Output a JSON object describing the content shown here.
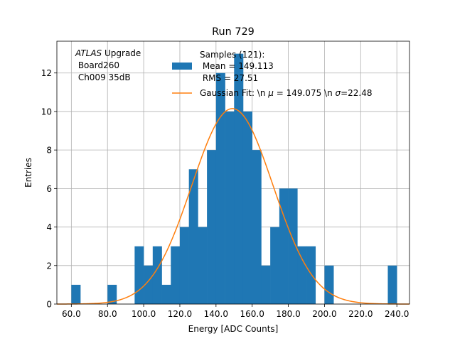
{
  "chart_data": {
    "type": "bar",
    "title": "Run 729",
    "xlabel": "Energy [ADC Counts]",
    "ylabel": "Entries",
    "xlim": [
      52,
      247
    ],
    "ylim": [
      0,
      13.65
    ],
    "grid": true,
    "xticks": [
      60,
      80,
      100,
      120,
      140,
      160,
      180,
      200,
      220,
      240
    ],
    "xtick_labels": [
      "60.0",
      "80.0",
      "100.0",
      "120.0",
      "140.0",
      "160.0",
      "180.0",
      "200.0",
      "220.0",
      "240.0"
    ],
    "yticks": [
      0,
      2,
      4,
      6,
      8,
      10,
      12
    ],
    "ytick_labels": [
      "0",
      "2",
      "4",
      "6",
      "8",
      "10",
      "12"
    ],
    "annotation": {
      "line1_italic": "ATLAS",
      "line1_rest": " Upgrade",
      "line2": " Board260",
      "line3": " Ch009 35dB"
    },
    "histogram": {
      "name": "Samples (121):",
      "mean_label": " Mean = 149.113",
      "rms_label": " RMS = 27.51",
      "color": "#1f77b4",
      "bin_edges": [
        60,
        65,
        70,
        75,
        80,
        85,
        90,
        95,
        100,
        105,
        110,
        115,
        120,
        125,
        130,
        135,
        140,
        145,
        150,
        155,
        160,
        165,
        170,
        175,
        180,
        185,
        190,
        195,
        200,
        205,
        210,
        215,
        220,
        225,
        230,
        235,
        240
      ],
      "counts": [
        1,
        0,
        0,
        0,
        1,
        0,
        0,
        3,
        2,
        3,
        1,
        3,
        4,
        7,
        4,
        8,
        12,
        10,
        13,
        10,
        8,
        2,
        4,
        6,
        6,
        3,
        3,
        0,
        2,
        0,
        0,
        0,
        0,
        0,
        0,
        2
      ]
    },
    "fit": {
      "label": "Gaussian Fit: \\n $\\mu$ = 149.075 \\n $\\sigma$=22.48",
      "label_prefix": "Gaussian Fit: \\n ",
      "mu_symbol": "μ",
      "label_mid": " = 149.075 \\n ",
      "sigma_symbol": "σ",
      "label_suffix": "=22.48",
      "mu": 149.075,
      "sigma": 22.48,
      "amplitude": 10.15,
      "color": "#ff7f0e",
      "x_range": [
        52,
        247
      ]
    },
    "legend_position": "top-right"
  }
}
